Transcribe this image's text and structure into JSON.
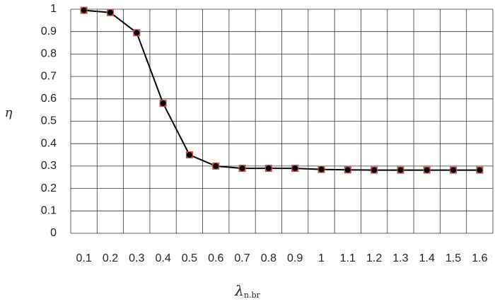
{
  "chart_data": {
    "type": "line",
    "y_label": "η",
    "x_label": {
      "symbol": "λ",
      "subscript": "n.br"
    },
    "categories": [
      "0.1",
      "0.2",
      "0.3",
      "0.4",
      "0.5",
      "0.6",
      "0.7",
      "0.8",
      "0.9",
      "1",
      "1.1",
      "1.2",
      "1.3",
      "1.4",
      "1.5",
      "1.6"
    ],
    "series": [
      {
        "color": "#000000",
        "marker_color": "#c0504d",
        "values": [
          0.995,
          0.985,
          0.895,
          0.58,
          0.35,
          0.3,
          0.29,
          0.29,
          0.29,
          0.285,
          0.283,
          0.282,
          0.282,
          0.282,
          0.282,
          0.282
        ]
      }
    ],
    "ylim": [
      0,
      1
    ],
    "yticks": [
      0,
      0.1,
      0.2,
      0.3,
      0.4,
      0.5,
      0.6,
      0.7,
      0.8,
      0.9,
      1
    ],
    "grid": true
  }
}
